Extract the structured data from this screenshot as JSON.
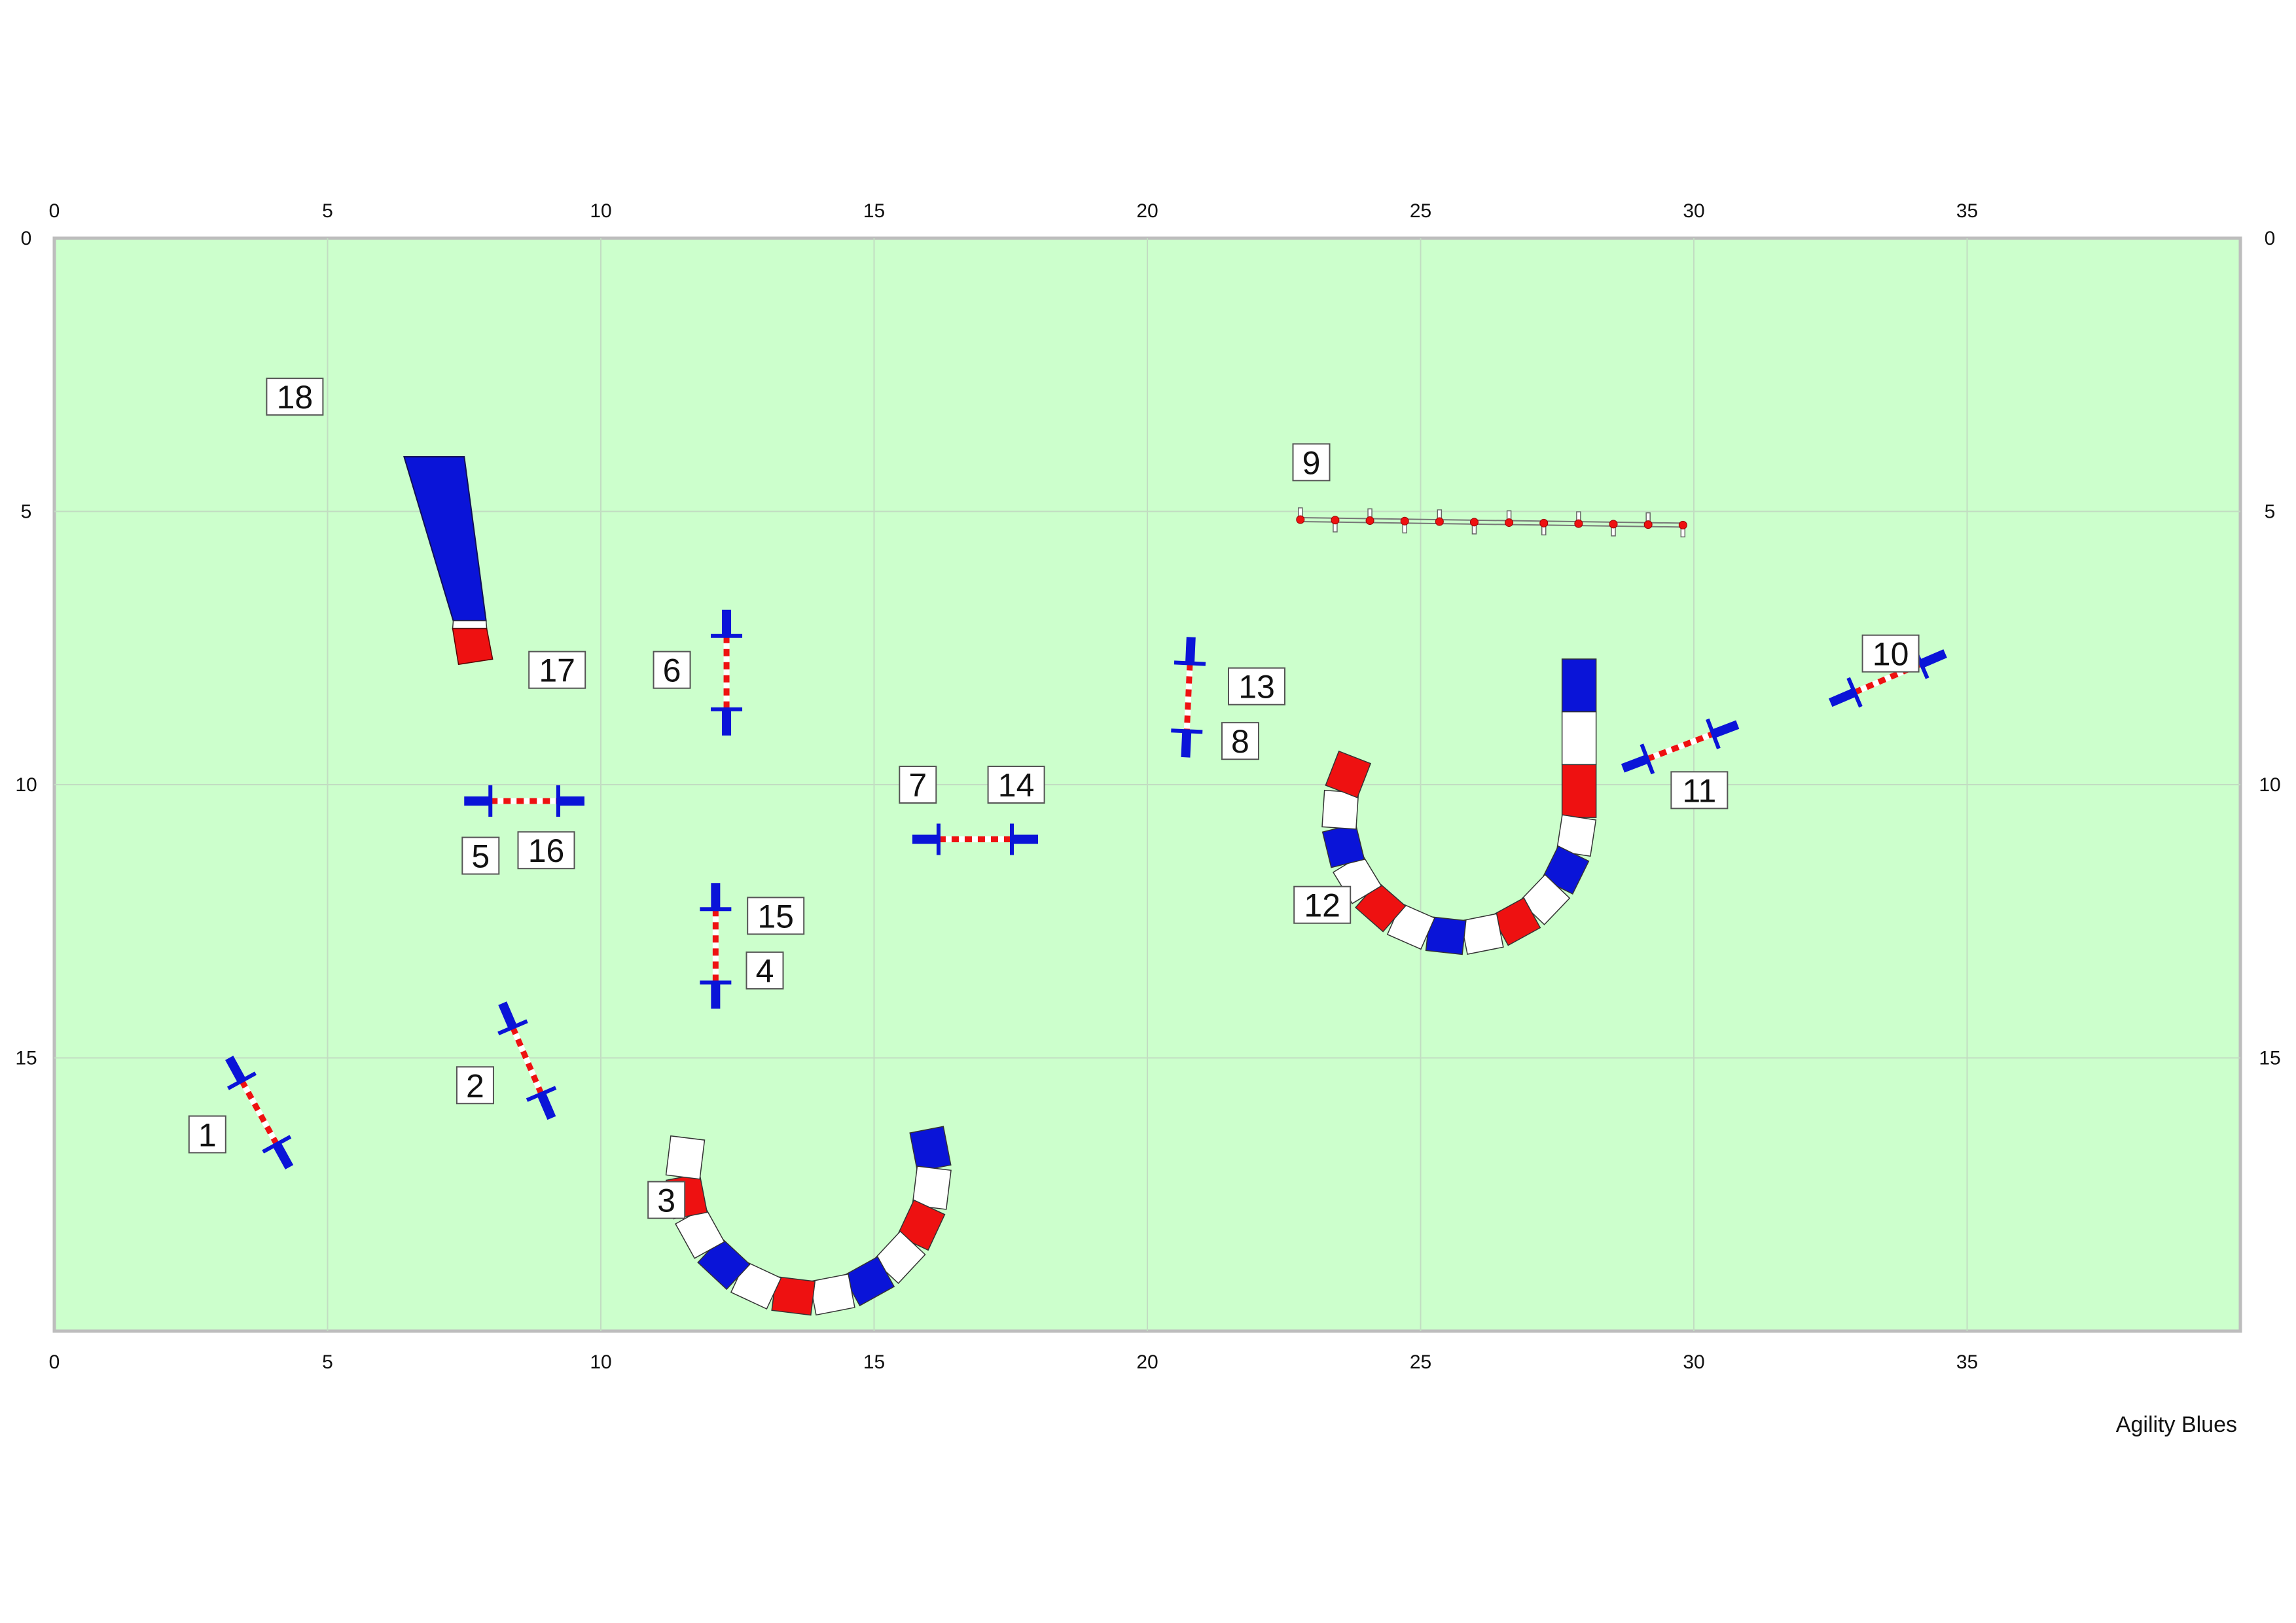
{
  "course": {
    "width_m": 40,
    "height_m": 20,
    "x_ticks": [
      "0",
      "5",
      "10",
      "15",
      "20",
      "25",
      "30",
      "35"
    ],
    "y_ticks": [
      "0",
      "5",
      "10",
      "15"
    ],
    "colors": {
      "field": "#ccffcc",
      "grid": "#c2dcc2",
      "border": "#bdbdbd",
      "blue": "#0a14d8",
      "red": "#ee1111",
      "white": "#ffffff"
    },
    "credit": "Agility Blues"
  },
  "obstacles": [
    {
      "id": "jump-1",
      "type": "jump",
      "x1": 3.2,
      "y1": 15.0,
      "x2": 4.3,
      "y2": 17.0
    },
    {
      "id": "jump-2",
      "type": "jump",
      "x1": 8.2,
      "y1": 14.0,
      "x2": 9.1,
      "y2": 16.1
    },
    {
      "id": "tunnel-3",
      "type": "tunnel",
      "cx": 13.8,
      "cy": 17.1,
      "r": 2.3,
      "start_deg": 196,
      "end_deg": -20,
      "segments": 12
    },
    {
      "id": "jump-4-15",
      "type": "jump",
      "x1": 12.1,
      "y1": 11.8,
      "x2": 12.1,
      "y2": 14.1
    },
    {
      "id": "jump-5-16",
      "type": "jump",
      "x1": 7.5,
      "y1": 10.3,
      "x2": 9.7,
      "y2": 10.3
    },
    {
      "id": "jump-6",
      "type": "jump",
      "x1": 12.3,
      "y1": 6.8,
      "x2": 12.3,
      "y2": 9.1
    },
    {
      "id": "jump-7-14",
      "type": "jump",
      "x1": 15.7,
      "y1": 11.0,
      "x2": 18.0,
      "y2": 11.0
    },
    {
      "id": "jump-8-13",
      "type": "jump",
      "x1": 20.8,
      "y1": 7.3,
      "x2": 20.7,
      "y2": 9.5
    },
    {
      "id": "weave-9",
      "type": "weave",
      "x1": 22.8,
      "y1": 5.15,
      "x2": 29.8,
      "y2": 5.25,
      "poles": 12
    },
    {
      "id": "jump-10",
      "type": "jump",
      "x1": 32.5,
      "y1": 8.5,
      "x2": 34.6,
      "y2": 7.6
    },
    {
      "id": "jump-11",
      "type": "jump",
      "x1": 28.7,
      "y1": 9.7,
      "x2": 30.8,
      "y2": 8.9
    },
    {
      "id": "tunnel-12",
      "type": "tunnel",
      "cx": 25.7,
      "cy": 10.6,
      "r": 2.2,
      "start_deg": 210,
      "end_deg": 0,
      "tail_to_y": 7.7,
      "segments": 12
    },
    {
      "id": "chute-17",
      "type": "chute",
      "tip_left_x": 6.4,
      "tip_right_x": 7.5,
      "tip_y": 4.0,
      "base_left_x": 7.3,
      "base_right_x": 7.9,
      "base_y": 7.0,
      "skirt_y": 7.8
    }
  ],
  "numbers": [
    {
      "label": "1",
      "x": 2.8,
      "y": 16.4
    },
    {
      "label": "2",
      "x": 7.7,
      "y": 15.5
    },
    {
      "label": "3",
      "x": 11.2,
      "y": 17.6
    },
    {
      "label": "4",
      "x": 13.0,
      "y": 13.4
    },
    {
      "label": "5",
      "x": 7.8,
      "y": 11.3
    },
    {
      "label": "6",
      "x": 11.3,
      "y": 7.9
    },
    {
      "label": "7",
      "x": 15.8,
      "y": 10.0
    },
    {
      "label": "8",
      "x": 21.7,
      "y": 9.2
    },
    {
      "label": "9",
      "x": 23.0,
      "y": 4.1
    },
    {
      "label": "10",
      "x": 33.6,
      "y": 7.6
    },
    {
      "label": "11",
      "x": 30.1,
      "y": 10.1
    },
    {
      "label": "12",
      "x": 23.2,
      "y": 12.2
    },
    {
      "label": "13",
      "x": 22.0,
      "y": 8.2
    },
    {
      "label": "14",
      "x": 17.6,
      "y": 10.0
    },
    {
      "label": "15",
      "x": 13.2,
      "y": 12.4
    },
    {
      "label": "16",
      "x": 9.0,
      "y": 11.2
    },
    {
      "label": "17",
      "x": 9.2,
      "y": 7.9
    },
    {
      "label": "18",
      "x": 4.4,
      "y": 2.9
    }
  ]
}
